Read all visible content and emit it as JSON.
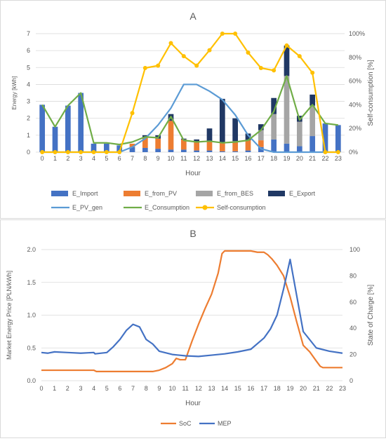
{
  "chart_data": [
    {
      "type": "bar",
      "subtype": "stacked bar + line, dual axis",
      "title": "A",
      "xlabel": "Hour",
      "ylabel_left": "Energy [kWh]",
      "ylabel_right": "Self-consumption [%]",
      "categories": [
        "0",
        "1",
        "2",
        "3",
        "4",
        "5",
        "6",
        "7",
        "8",
        "9",
        "10",
        "11",
        "12",
        "13",
        "14",
        "15",
        "16",
        "17",
        "18",
        "19",
        "20",
        "21",
        "22",
        "23"
      ],
      "ylim_left": [
        0,
        7
      ],
      "yticks_left": [
        "0",
        "1",
        "2",
        "3",
        "4",
        "5",
        "6",
        "7"
      ],
      "ylim_right": [
        0,
        100
      ],
      "yticks_right": [
        "0%",
        "20%",
        "40%",
        "60%",
        "80%",
        "100%"
      ],
      "grid": true,
      "legend_position": "bottom",
      "bar_series": [
        {
          "name": "E_Import",
          "color": "#4472C4",
          "values": [
            2.8,
            1.5,
            2.75,
            3.5,
            0.5,
            0.5,
            0.4,
            0.3,
            0.25,
            0.2,
            0.15,
            0.15,
            0.1,
            0.1,
            0.05,
            0.05,
            0.1,
            0.3,
            0.75,
            0.5,
            0.35,
            0.95,
            1.7,
            1.6
          ]
        },
        {
          "name": "E_from_PV",
          "color": "#ED7D31",
          "values": [
            0,
            0,
            0,
            0,
            0,
            0,
            0,
            0.2,
            0.6,
            0.6,
            1.7,
            0.6,
            0.5,
            0.5,
            0.5,
            0.6,
            0.6,
            0.4,
            0,
            0,
            0,
            0,
            0,
            0
          ]
        },
        {
          "name": "E_from_BES",
          "color": "#A5A5A5",
          "values": [
            0,
            0,
            0,
            0,
            0,
            0,
            0,
            0,
            0,
            0,
            0,
            0,
            0,
            0,
            0,
            0,
            0,
            0.6,
            1.5,
            4.0,
            1.45,
            1.8,
            0,
            0
          ]
        },
        {
          "name": "E_Export",
          "color": "#203864",
          "values": [
            0,
            0,
            0,
            0,
            0,
            0,
            0,
            0,
            0.15,
            0.2,
            0.4,
            0.05,
            0.15,
            0.8,
            2.6,
            1.35,
            0.4,
            0.35,
            0.95,
            1.8,
            0.35,
            0.65,
            0,
            0
          ]
        }
      ],
      "line_series": [
        {
          "name": "E_PV_gen",
          "color": "#5B9BD5",
          "axis": "left",
          "values": [
            0,
            0,
            0,
            0,
            0,
            0,
            0,
            0.3,
            0.8,
            1.6,
            2.6,
            4.0,
            4.0,
            3.6,
            3.1,
            2.2,
            1.0,
            0.2,
            0,
            0,
            0,
            0,
            0,
            0
          ]
        },
        {
          "name": "E_Consumption",
          "color": "#70AD47",
          "axis": "left",
          "values": [
            2.8,
            1.5,
            2.75,
            3.5,
            0.55,
            0.55,
            0.45,
            0.6,
            0.9,
            0.85,
            2.1,
            0.7,
            0.6,
            0.65,
            0.55,
            0.6,
            0.7,
            1.3,
            2.4,
            4.5,
            1.9,
            2.8,
            1.7,
            1.6
          ]
        },
        {
          "name": "Self-consumption",
          "color": "#FFC000",
          "axis": "right",
          "values": [
            0,
            0,
            0,
            0,
            0,
            0,
            0,
            33,
            71,
            73,
            92,
            81,
            73,
            86,
            100,
            100,
            84,
            71,
            69,
            90,
            81,
            67,
            0,
            0
          ]
        }
      ]
    },
    {
      "type": "line",
      "title": "B",
      "xlabel": "Hour",
      "ylabel_left": "Market Energy Price [PLN/kWh]",
      "ylabel_right": "State of Charge [%]",
      "xlim": [
        0,
        23
      ],
      "xticks": [
        "0",
        "1",
        "2",
        "3",
        "4",
        "5",
        "6",
        "7",
        "8",
        "9",
        "10",
        "11",
        "12",
        "13",
        "14",
        "15",
        "16",
        "17",
        "18",
        "19",
        "20",
        "21",
        "22",
        "23"
      ],
      "ylim_left": [
        0,
        2.0
      ],
      "yticks_left": [
        "0.0",
        "0.5",
        "1.0",
        "1.5",
        "2.0"
      ],
      "ylim_right": [
        0,
        100
      ],
      "yticks_right": [
        "0",
        "20",
        "40",
        "60",
        "80",
        "100"
      ],
      "grid": true,
      "legend_position": "bottom",
      "series": [
        {
          "name": "SoC",
          "color": "#ED7D31",
          "axis": "right",
          "x": [
            0,
            4,
            4.2,
            8.5,
            9,
            9.5,
            10,
            10.3,
            10.6,
            11,
            11.5,
            12,
            12.5,
            13,
            13.5,
            13.8,
            14,
            16,
            16.5,
            17,
            17.3,
            17.6,
            18,
            18.5,
            19,
            19.5,
            20,
            20.5,
            21,
            21.3,
            21.5,
            22,
            23
          ],
          "y": [
            8,
            8,
            7,
            7,
            8,
            10,
            13,
            17,
            16,
            16,
            30,
            43,
            55,
            66,
            82,
            97,
            99,
            99,
            98,
            98,
            96,
            93,
            88,
            80,
            64,
            45,
            27,
            22,
            15,
            11,
            10,
            10,
            10
          ]
        },
        {
          "name": "MEP",
          "color": "#4472C4",
          "axis": "left",
          "x": [
            0,
            0.5,
            1,
            2,
            3,
            4,
            4.1,
            5,
            5.5,
            6,
            6.5,
            7,
            7.5,
            8,
            8.5,
            9,
            10,
            11,
            12,
            13,
            14,
            15,
            16,
            17,
            17.5,
            18,
            18.5,
            19,
            19.5,
            20,
            21,
            22,
            23
          ],
          "y": [
            0.43,
            0.42,
            0.44,
            0.43,
            0.42,
            0.43,
            0.41,
            0.43,
            0.52,
            0.63,
            0.77,
            0.86,
            0.82,
            0.63,
            0.56,
            0.45,
            0.4,
            0.38,
            0.37,
            0.39,
            0.41,
            0.44,
            0.48,
            0.65,
            0.79,
            1.0,
            1.4,
            1.85,
            1.3,
            0.75,
            0.5,
            0.45,
            0.42
          ]
        }
      ]
    }
  ]
}
